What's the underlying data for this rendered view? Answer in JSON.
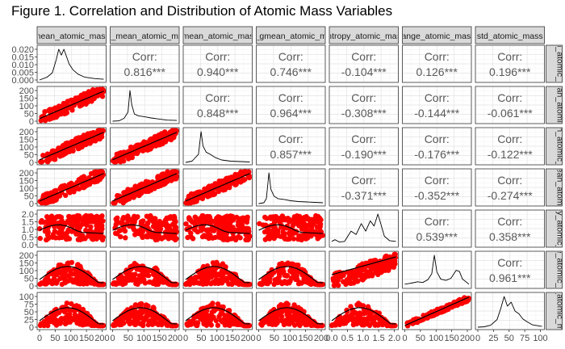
{
  "figure": {
    "title": "Figure 1. Correlation and Distribution of Atomic Mass Variables"
  },
  "chart_data": {
    "type": "scatter-matrix",
    "variables": [
      {
        "strip": "mean_atomic_mass",
        "range": [
          0,
          210
        ],
        "ticks": [
          "0",
          "50",
          "100",
          "150",
          "200"
        ],
        "density": {
          "range": [
            0,
            0.025
          ],
          "ticks": [
            "0.000",
            "0.005",
            "0.010",
            "0.015",
            "0.020"
          ]
        }
      },
      {
        "strip": "wtd_mean_atomic_mass",
        "range": [
          0,
          220
        ],
        "ticks": [
          "0",
          "50",
          "100",
          "150",
          "200"
        ]
      },
      {
        "strip": "gmean_atomic_mass",
        "range": [
          0,
          210
        ],
        "ticks": [
          "0",
          "50",
          "100",
          "150",
          "200"
        ]
      },
      {
        "strip": "wtd_gmean_atomic_mass",
        "range": [
          0,
          220
        ],
        "ticks": [
          "0",
          "50",
          "100",
          "150",
          "200"
        ]
      },
      {
        "strip": "entropy_atomic_mass",
        "range": [
          0,
          2.0
        ],
        "ticks": [
          "0.0",
          "0.5",
          "1.0",
          "1.5",
          "2.0"
        ]
      },
      {
        "strip": "range_atomic_mass",
        "range": [
          0,
          210
        ],
        "ticks": [
          "0",
          "50",
          "100",
          "150",
          "200"
        ]
      },
      {
        "strip": "std_atomic_mass",
        "range": [
          0,
          105
        ],
        "ticks": [
          "0",
          "25",
          "50",
          "75",
          "100"
        ]
      }
    ],
    "correlations": [
      [
        "",
        "0.816***",
        "0.940***",
        "0.746***",
        "-0.104***",
        "0.126***",
        "0.196***"
      ],
      [
        "",
        "",
        "0.848***",
        "0.964***",
        "-0.308***",
        "-0.144***",
        "-0.061***"
      ],
      [
        "",
        "",
        "",
        "0.857***",
        "-0.190***",
        "-0.176***",
        "-0.122***"
      ],
      [
        "",
        "",
        "",
        "",
        "-0.371***",
        "-0.352***",
        "-0.274***"
      ],
      [
        "",
        "",
        "",
        "",
        "",
        "0.539***",
        "0.358***"
      ],
      [
        "",
        "",
        "",
        "",
        "",
        "",
        "0.961***"
      ]
    ],
    "corr_label": "Corr:",
    "densities": [
      [
        [
          0,
          0
        ],
        [
          0.12,
          0.002
        ],
        [
          0.2,
          0.005
        ],
        [
          0.26,
          0.014
        ],
        [
          0.3,
          0.021
        ],
        [
          0.34,
          0.017
        ],
        [
          0.38,
          0.021
        ],
        [
          0.42,
          0.016
        ],
        [
          0.46,
          0.011
        ],
        [
          0.52,
          0.007
        ],
        [
          0.6,
          0.004
        ],
        [
          0.7,
          0.002
        ],
        [
          0.85,
          0.001
        ],
        [
          1,
          0.0005
        ]
      ],
      [
        [
          0,
          0
        ],
        [
          0.1,
          0.01
        ],
        [
          0.18,
          0.08
        ],
        [
          0.24,
          0.25
        ],
        [
          0.27,
          0.85
        ],
        [
          0.3,
          0.45
        ],
        [
          0.34,
          0.2
        ],
        [
          0.4,
          0.15
        ],
        [
          0.5,
          0.12
        ],
        [
          0.6,
          0.09
        ],
        [
          0.72,
          0.06
        ],
        [
          0.85,
          0.03
        ],
        [
          1,
          0.02
        ]
      ],
      [
        [
          0,
          0
        ],
        [
          0.1,
          0.03
        ],
        [
          0.2,
          0.2
        ],
        [
          0.24,
          0.75
        ],
        [
          0.27,
          0.4
        ],
        [
          0.32,
          0.25
        ],
        [
          0.38,
          0.2
        ],
        [
          0.46,
          0.12
        ],
        [
          0.56,
          0.06
        ],
        [
          0.7,
          0.03
        ],
        [
          0.85,
          0.02
        ],
        [
          1,
          0.01
        ]
      ],
      [
        [
          0,
          0
        ],
        [
          0.08,
          0.02
        ],
        [
          0.12,
          0.12
        ],
        [
          0.16,
          0.75
        ],
        [
          0.19,
          0.35
        ],
        [
          0.24,
          0.18
        ],
        [
          0.3,
          0.12
        ],
        [
          0.4,
          0.1
        ],
        [
          0.5,
          0.07
        ],
        [
          0.62,
          0.05
        ],
        [
          0.75,
          0.04
        ],
        [
          0.88,
          0.03
        ],
        [
          1,
          0.02
        ]
      ],
      [
        [
          0,
          0.1
        ],
        [
          0.05,
          0.15
        ],
        [
          0.12,
          0.08
        ],
        [
          0.2,
          0.1
        ],
        [
          0.3,
          0.4
        ],
        [
          0.38,
          0.3
        ],
        [
          0.46,
          0.62
        ],
        [
          0.53,
          0.4
        ],
        [
          0.6,
          0.7
        ],
        [
          0.66,
          0.55
        ],
        [
          0.72,
          0.9
        ],
        [
          0.77,
          0.58
        ],
        [
          0.82,
          0.25
        ],
        [
          0.9,
          0.12
        ],
        [
          1,
          0.1
        ]
      ],
      [
        [
          0,
          0.05
        ],
        [
          0.1,
          0.08
        ],
        [
          0.2,
          0.12
        ],
        [
          0.28,
          0.1
        ],
        [
          0.36,
          0.18
        ],
        [
          0.42,
          0.35
        ],
        [
          0.46,
          0.88
        ],
        [
          0.5,
          0.4
        ],
        [
          0.56,
          0.2
        ],
        [
          0.64,
          0.16
        ],
        [
          0.72,
          0.22
        ],
        [
          0.8,
          0.45
        ],
        [
          0.85,
          0.42
        ],
        [
          0.9,
          0.2
        ],
        [
          1,
          0.05
        ]
      ],
      [
        [
          0,
          0
        ],
        [
          0.1,
          0.01
        ],
        [
          0.2,
          0.05
        ],
        [
          0.3,
          0.2
        ],
        [
          0.36,
          0.5
        ],
        [
          0.41,
          0.8
        ],
        [
          0.46,
          0.55
        ],
        [
          0.52,
          0.65
        ],
        [
          0.58,
          0.42
        ],
        [
          0.64,
          0.35
        ],
        [
          0.7,
          0.22
        ],
        [
          0.76,
          0.15
        ],
        [
          0.85,
          0.06
        ],
        [
          1,
          0.02
        ]
      ]
    ],
    "scatter_point_color": "#ff0000",
    "trend_line_color": "#000000"
  }
}
